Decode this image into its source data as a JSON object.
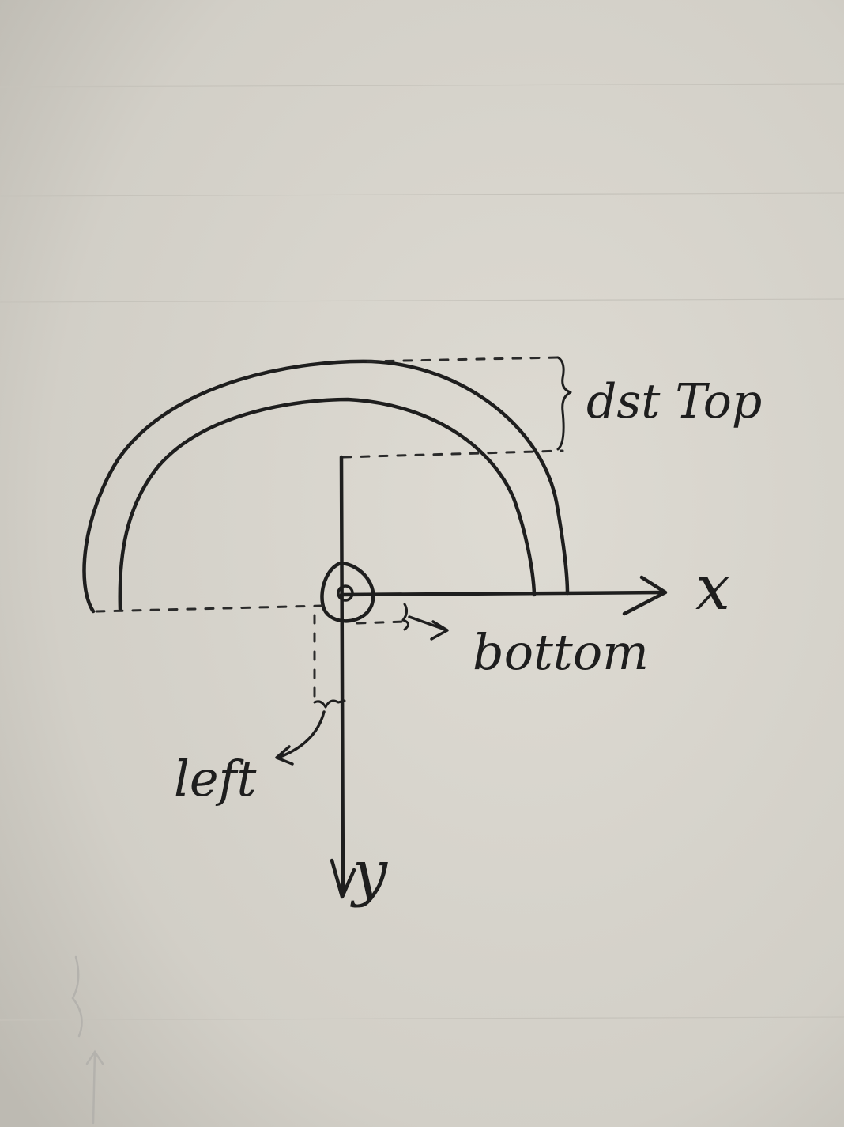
{
  "diagram": {
    "labels": {
      "dst_top": "dst Top",
      "x_axis": "x",
      "y_axis": "y",
      "bottom": "bottom",
      "left": "left"
    },
    "colors": {
      "paper": "#d7d4cc",
      "ink": "#1e1e1e"
    }
  }
}
